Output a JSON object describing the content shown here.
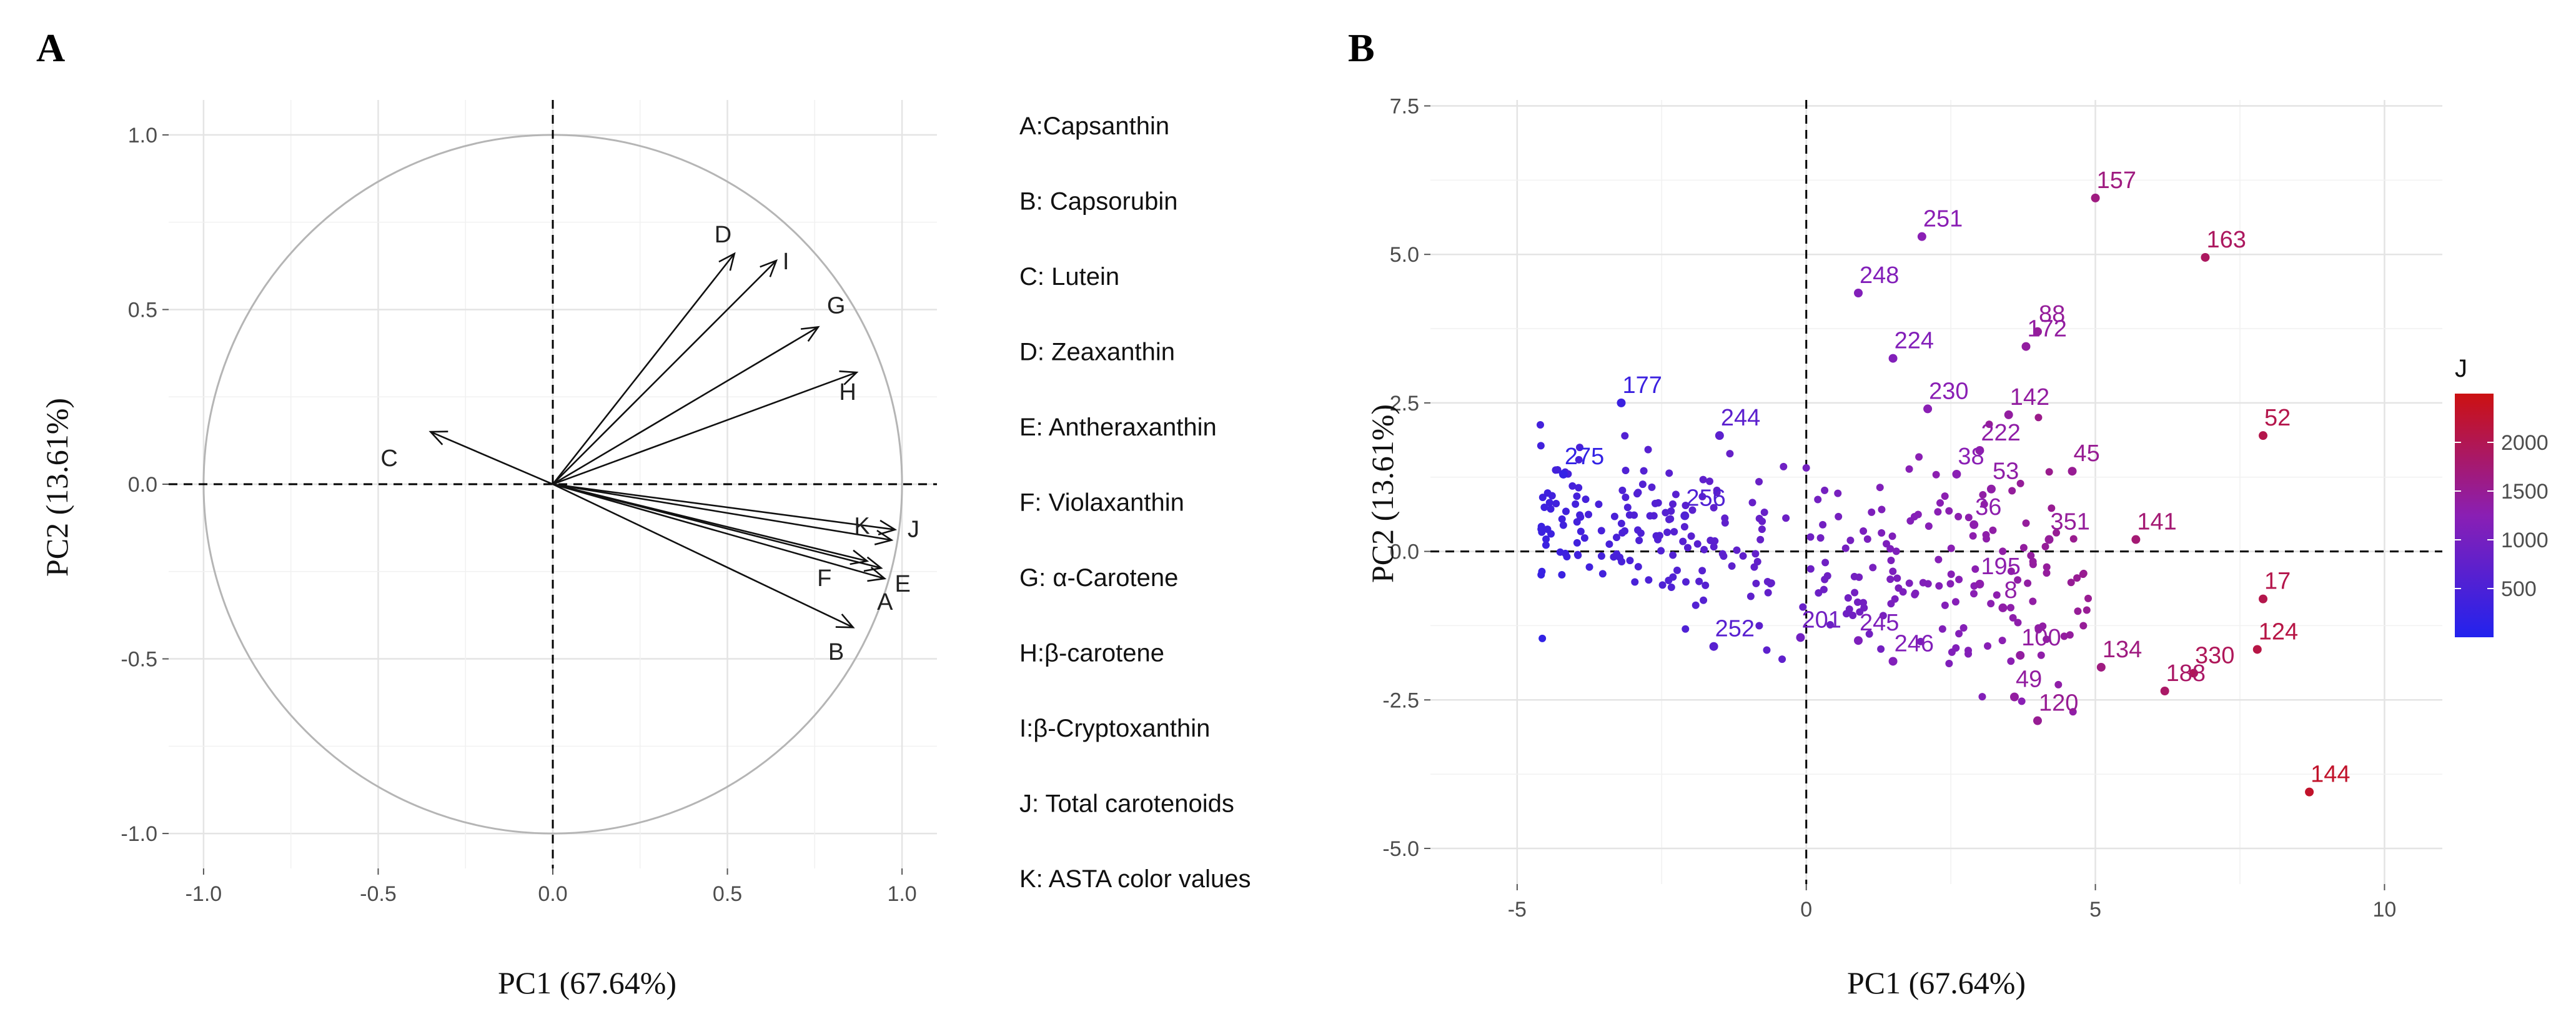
{
  "panels": {
    "a": {
      "label": "A"
    },
    "b": {
      "label": "B"
    }
  },
  "chart_data": [
    {
      "type": "scatter",
      "subtype": "pca-loadings",
      "title": "A",
      "xlabel": "PC1 (67.64%)",
      "ylabel": "PC2 (13.61%)",
      "xlim": [
        -1.1,
        1.1
      ],
      "ylim": [
        -1.1,
        1.1
      ],
      "xticks": [
        "-1.0",
        "-0.5",
        "0.0",
        "0.5",
        "1.0"
      ],
      "yticks": [
        "1.0",
        "0.5",
        "0.0",
        "-0.5",
        "-1.0"
      ],
      "xtick_values": [
        -1,
        -0.5,
        0,
        0.5,
        1
      ],
      "ytick_values": [
        1,
        0.5,
        0,
        -0.5,
        -1
      ],
      "grid": true,
      "unit_circle": true,
      "vectors": [
        {
          "id": "A",
          "x": 0.95,
          "y": -0.27
        },
        {
          "id": "B",
          "x": 0.86,
          "y": -0.41
        },
        {
          "id": "C",
          "x": -0.35,
          "y": 0.15
        },
        {
          "id": "D",
          "x": 0.52,
          "y": 0.66
        },
        {
          "id": "E",
          "x": 0.94,
          "y": -0.24
        },
        {
          "id": "F",
          "x": 0.9,
          "y": -0.22
        },
        {
          "id": "G",
          "x": 0.76,
          "y": 0.45
        },
        {
          "id": "H",
          "x": 0.87,
          "y": 0.32
        },
        {
          "id": "I",
          "x": 0.64,
          "y": 0.64
        },
        {
          "id": "J",
          "x": 0.98,
          "y": -0.13
        },
        {
          "id": "K",
          "x": 0.97,
          "y": -0.16
        }
      ],
      "legend": [
        "A:Capsanthin",
        "B: Capsorubin",
        "C: Lutein",
        "D: Zeaxanthin",
        "E: Antheraxanthin",
        "F: Violaxanthin",
        "G: α-Carotene",
        "H:β-carotene",
        "I:β-Cryptoxanthin",
        "J: Total carotenoids",
        "K: ASTA color values"
      ]
    },
    {
      "type": "scatter",
      "subtype": "pca-scores",
      "title": "B",
      "xlabel": "PC1 (67.64%)",
      "ylabel": "PC2 (13.61%)",
      "xlim": [
        -6.5,
        11
      ],
      "ylim": [
        -5.6,
        7.6
      ],
      "xticks": [
        "-5",
        "0",
        "5",
        "10"
      ],
      "yticks": [
        "7.5",
        "5.0",
        "2.5",
        "0.0",
        "-2.5",
        "-5.0"
      ],
      "xtick_values": [
        -5,
        0,
        5,
        10
      ],
      "ytick_values": [
        7.5,
        5,
        2.5,
        0,
        -2.5,
        -5
      ],
      "grid": true,
      "colorbar": {
        "title": "J",
        "min": 0,
        "max": 2500,
        "ticks": [
          "2000",
          "1500",
          "1000",
          "500"
        ],
        "tick_values": [
          2000,
          1500,
          1000,
          500
        ],
        "low_color": "#2222ee",
        "mid_color": "#8a1fb4",
        "high_color": "#cc1111"
      },
      "labeled_points": [
        {
          "label": "157",
          "x": 5.0,
          "y": 5.95,
          "j": 1650
        },
        {
          "label": "163",
          "x": 6.9,
          "y": 4.95,
          "j": 1900
        },
        {
          "label": "251",
          "x": 2.0,
          "y": 5.3,
          "j": 1250
        },
        {
          "label": "248",
          "x": 0.9,
          "y": 4.35,
          "j": 1150
        },
        {
          "label": "88",
          "x": 4.0,
          "y": 3.7,
          "j": 1450
        },
        {
          "label": "172",
          "x": 3.8,
          "y": 3.45,
          "j": 1400
        },
        {
          "label": "224",
          "x": 1.5,
          "y": 3.25,
          "j": 1150
        },
        {
          "label": "177",
          "x": -3.2,
          "y": 2.5,
          "j": 300
        },
        {
          "label": "142",
          "x": 3.5,
          "y": 2.3,
          "j": 1400
        },
        {
          "label": "52",
          "x": 7.9,
          "y": 1.95,
          "j": 2050
        },
        {
          "label": "45",
          "x": 4.6,
          "y": 1.35,
          "j": 1500
        },
        {
          "label": "141",
          "x": 5.7,
          "y": 0.2,
          "j": 1750
        },
        {
          "label": "351",
          "x": 4.2,
          "y": 0.2,
          "j": 1450
        },
        {
          "label": "17",
          "x": 7.9,
          "y": -0.8,
          "j": 2050
        },
        {
          "label": "124",
          "x": 7.8,
          "y": -1.65,
          "j": 2100
        },
        {
          "label": "330",
          "x": 6.7,
          "y": -2.05,
          "j": 1950
        },
        {
          "label": "134",
          "x": 5.1,
          "y": -1.95,
          "j": 1650
        },
        {
          "label": "120",
          "x": 4.0,
          "y": -2.85,
          "j": 1500
        },
        {
          "label": "144",
          "x": 8.7,
          "y": -4.05,
          "j": 2300
        },
        {
          "label": "246",
          "x": 1.5,
          "y": -1.85,
          "j": 1150
        },
        {
          "label": "275",
          "x": -4.2,
          "y": 1.3,
          "j": 200
        },
        {
          "label": "256",
          "x": -2.1,
          "y": 0.6,
          "j": 550
        },
        {
          "label": "244",
          "x": -1.5,
          "y": 1.95,
          "j": 700
        },
        {
          "label": "252",
          "x": -1.6,
          "y": -1.6,
          "j": 650
        },
        {
          "label": "53",
          "x": 3.2,
          "y": 1.05,
          "j": 1350
        },
        {
          "label": "49",
          "x": 3.6,
          "y": -2.45,
          "j": 1400
        },
        {
          "label": "100",
          "x": 3.7,
          "y": -1.75,
          "j": 1400
        },
        {
          "label": "188",
          "x": 6.2,
          "y": -2.35,
          "j": 1850
        },
        {
          "label": "8",
          "x": 3.4,
          "y": -0.95,
          "j": 1350
        },
        {
          "label": "195",
          "x": 3.0,
          "y": -0.55,
          "j": 1300
        },
        {
          "label": "230",
          "x": 2.1,
          "y": 2.4,
          "j": 1250
        },
        {
          "label": "222",
          "x": 3.0,
          "y": 1.7,
          "j": 1350
        },
        {
          "label": "36",
          "x": 2.9,
          "y": 0.45,
          "j": 1300
        },
        {
          "label": "38",
          "x": 2.6,
          "y": 1.3,
          "j": 1250
        },
        {
          "label": "201",
          "x": -0.1,
          "y": -1.45,
          "j": 950
        },
        {
          "label": "245",
          "x": 0.9,
          "y": -1.5,
          "j": 1100
        }
      ]
    }
  ]
}
